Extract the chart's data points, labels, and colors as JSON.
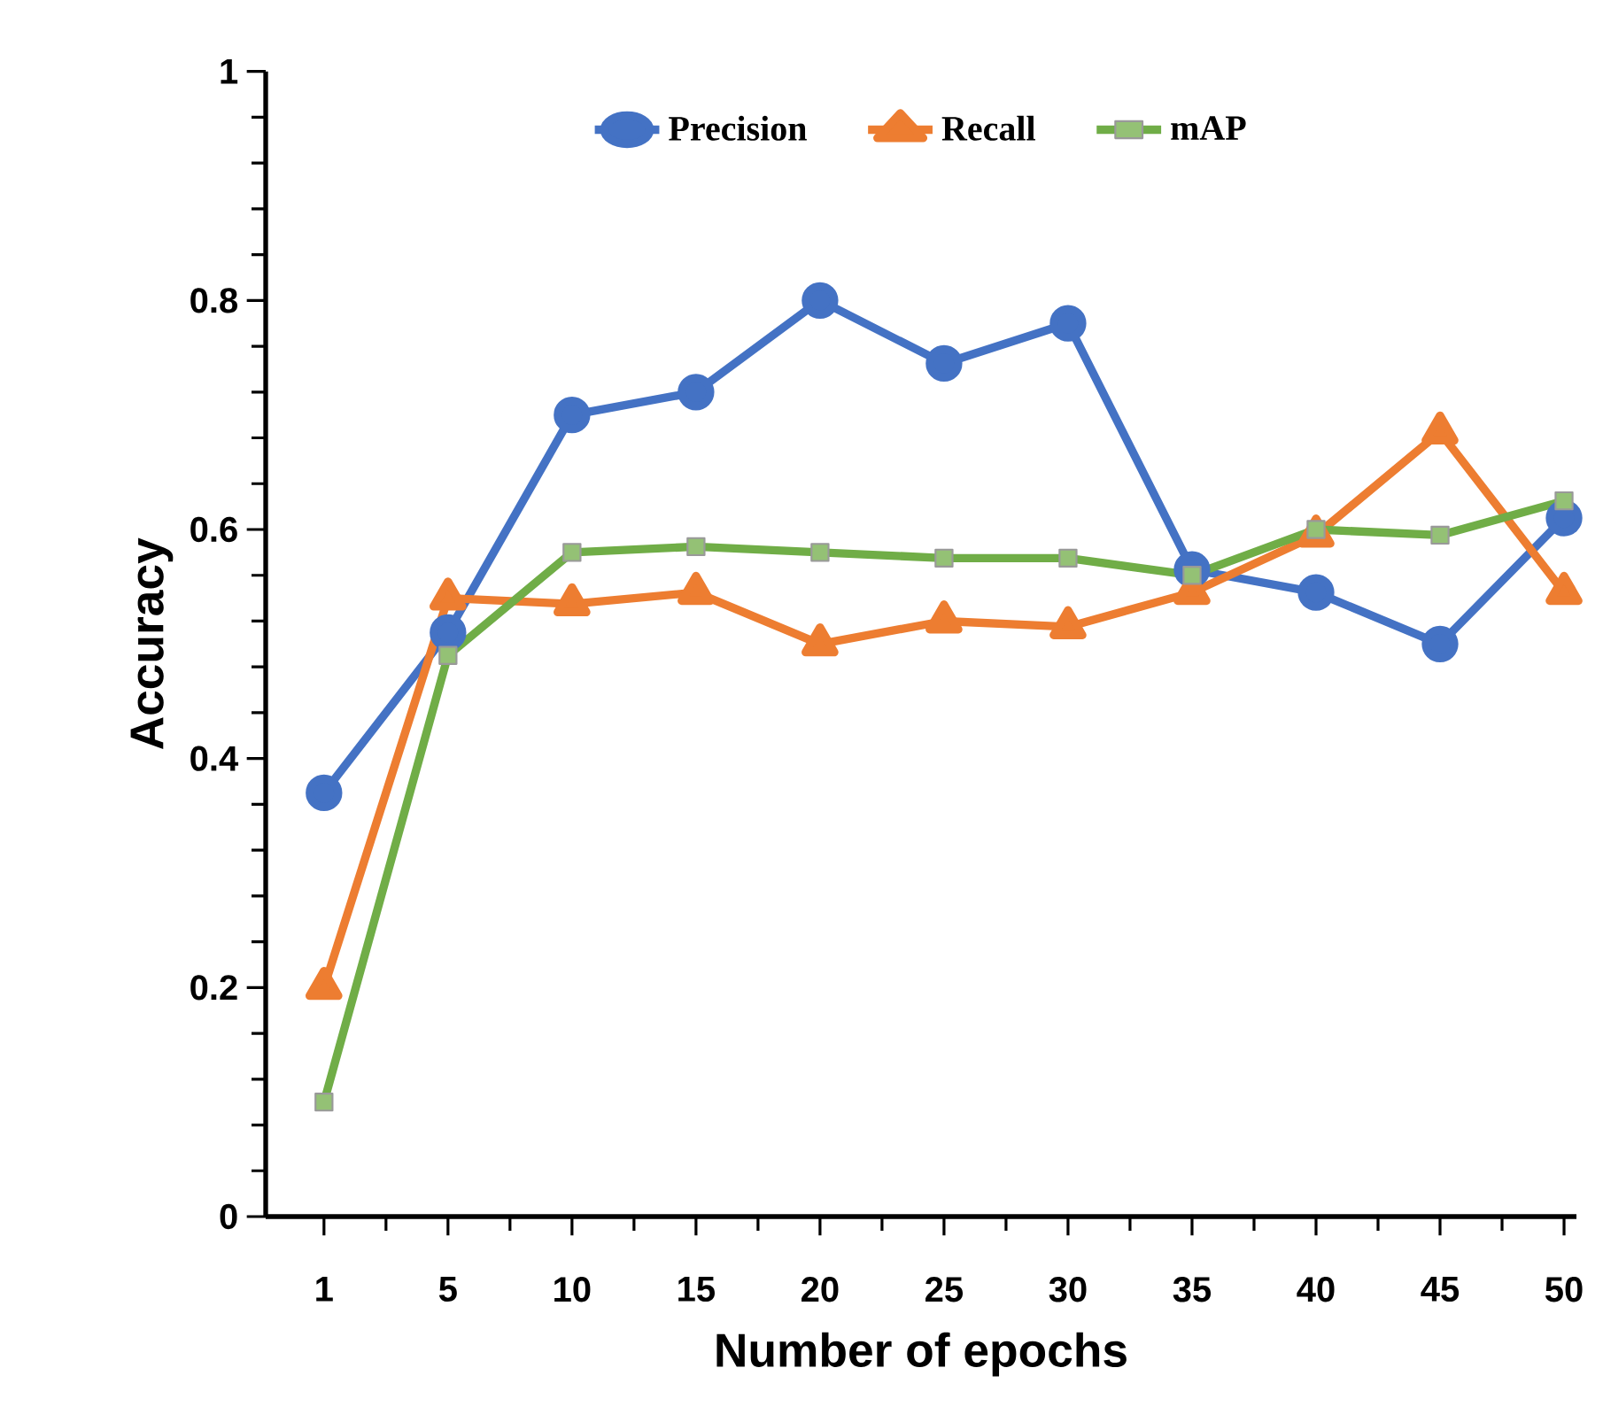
{
  "chart_data": {
    "type": "line",
    "xlabel": "Number of epochs",
    "ylabel": "Accuracy",
    "categories": [
      "1",
      "5",
      "10",
      "15",
      "20",
      "25",
      "30",
      "35",
      "40",
      "45",
      "50"
    ],
    "series": [
      {
        "name": "Precision",
        "color": "#4472c4",
        "marker": "circle",
        "values": [
          0.37,
          0.51,
          0.7,
          0.72,
          0.8,
          0.745,
          0.78,
          0.565,
          0.545,
          0.5,
          0.61
        ]
      },
      {
        "name": "Recall",
        "color": "#ed7d31",
        "marker": "triangle",
        "values": [
          0.2,
          0.54,
          0.535,
          0.545,
          0.5,
          0.52,
          0.515,
          0.545,
          0.595,
          0.685,
          0.545
        ]
      },
      {
        "name": "mAP",
        "color": "#70ad47",
        "marker": "square",
        "values": [
          0.1,
          0.49,
          0.58,
          0.585,
          0.58,
          0.575,
          0.575,
          0.56,
          0.6,
          0.595,
          0.625
        ]
      }
    ],
    "ylim": [
      0,
      1
    ],
    "yticks": [
      0,
      0.2,
      0.4,
      0.6,
      0.8,
      1
    ],
    "grid": false,
    "legend": "top",
    "line_style": "solid"
  }
}
